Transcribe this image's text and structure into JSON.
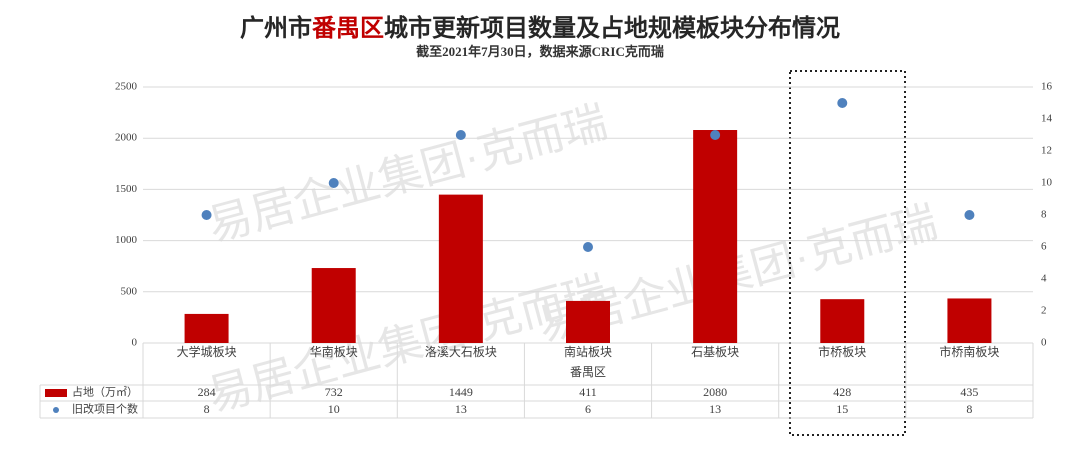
{
  "chart_data": {
    "type": "bar",
    "title": [
      "广州市",
      "番禺区",
      "城市更新项目数量及占地规模板块分布情况"
    ],
    "title_colors": [
      "#262626",
      "#c00000",
      "#262626"
    ],
    "subtitle": "截至2021年7月30日，数据来源CRIC克而瑞",
    "watermark": "易居企业集团·克而瑞",
    "x_label": "番禺区",
    "categories": [
      "大学城板块",
      "华南板块",
      "洛溪大石板块",
      "南站板块",
      "石基板块",
      "市桥板块",
      "市桥南板块"
    ],
    "series": [
      {
        "name": "占地（万㎡）",
        "color": "#c00000",
        "type": "bar",
        "values": [
          284,
          732,
          1449,
          411,
          2080,
          428,
          435
        ]
      },
      {
        "name": "旧改项目个数",
        "color": "#4f81bd",
        "type": "scatter",
        "axis": "y2",
        "values": [
          8,
          10,
          13,
          6,
          13,
          15,
          8
        ]
      }
    ],
    "ylim": [
      0,
      2500
    ],
    "yticks": [
      0,
      500,
      1000,
      1500,
      2000,
      2500
    ],
    "y2lim": [
      0,
      16
    ],
    "y2ticks": [
      0,
      2,
      4,
      6,
      8,
      10,
      12,
      14,
      16
    ],
    "grid": true
  }
}
